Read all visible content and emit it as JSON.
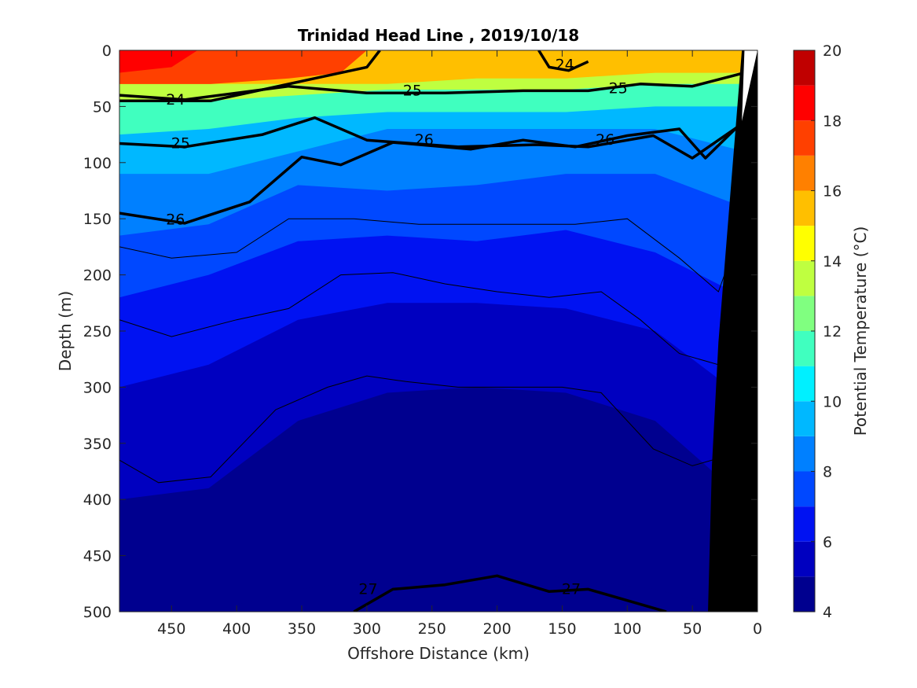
{
  "chart_data": {
    "type": "filled contour section",
    "title": "Trinidad Head Line , 2019/10/18",
    "xlabel": "Offshore Distance (km)",
    "ylabel": "Depth (m)",
    "xlim": [
      490,
      0
    ],
    "ylim": [
      0,
      500
    ],
    "x_reversed": true,
    "y_reversed": true,
    "x_ticks": [
      450,
      400,
      350,
      300,
      250,
      200,
      150,
      100,
      50,
      0
    ],
    "y_ticks": [
      0,
      50,
      100,
      150,
      200,
      250,
      300,
      350,
      400,
      450,
      500
    ],
    "colorbar": {
      "label": "Potential Temperature (°C)",
      "range": [
        4,
        20
      ],
      "ticks": [
        4,
        6,
        8,
        10,
        12,
        14,
        16,
        18,
        20
      ],
      "levels": [
        4,
        5,
        6,
        7,
        8,
        9,
        10,
        11,
        12,
        13,
        14,
        15,
        16,
        17,
        18,
        19,
        20
      ],
      "colors": [
        "#00008f",
        "#0000c0",
        "#0012f2",
        "#0048ff",
        "#0080ff",
        "#00b8ff",
        "#00f0ff",
        "#40ffbf",
        "#80ff80",
        "#bfff40",
        "#ffff00",
        "#ffbf00",
        "#ff8000",
        "#ff4000",
        "#ff0000",
        "#c00000"
      ]
    },
    "fill_bands": [
      {
        "temp_min": 16,
        "temp_max": 19,
        "top_km": [
          490,
          400,
          340,
          300
        ],
        "approx_bottom_m": [
          30,
          30,
          20,
          10
        ]
      },
      {
        "temp_min": 14,
        "temp_max": 16,
        "approx_bottom_m": [
          30,
          30,
          30,
          30,
          25,
          25,
          20,
          20
        ]
      },
      {
        "temp_min": 12,
        "temp_max": 14,
        "approx_bottom_m": [
          45,
          45,
          40,
          35,
          35,
          35,
          30,
          30
        ]
      },
      {
        "temp_min": 10,
        "temp_max": 12,
        "approx_bottom_m": [
          75,
          70,
          60,
          55,
          55,
          55,
          50,
          50
        ]
      },
      {
        "temp_min": 9,
        "temp_max": 10,
        "approx_bottom_m": [
          110,
          110,
          90,
          70,
          70,
          70,
          70,
          90
        ]
      },
      {
        "temp_min": 8,
        "temp_max": 9,
        "approx_bottom_m": [
          165,
          155,
          120,
          125,
          120,
          110,
          110,
          140
        ]
      },
      {
        "temp_min": 7,
        "temp_max": 8,
        "approx_bottom_m": [
          220,
          200,
          170,
          165,
          170,
          160,
          180,
          220
        ]
      },
      {
        "temp_min": 6,
        "temp_max": 7,
        "approx_bottom_m": [
          300,
          280,
          240,
          225,
          225,
          230,
          250,
          310
        ]
      },
      {
        "temp_min": 5,
        "temp_max": 6,
        "approx_bottom_m": [
          400,
          390,
          330,
          305,
          300,
          305,
          330,
          400
        ]
      },
      {
        "temp_min": 4,
        "temp_max": 5,
        "approx_bottom_m": [
          500,
          500,
          480,
          470,
          460,
          470,
          480,
          500
        ]
      }
    ],
    "contour_labels": [
      {
        "text": "24",
        "km": 447,
        "m": 44
      },
      {
        "text": "24",
        "km": 148,
        "m": 13
      },
      {
        "text": "25",
        "km": 265,
        "m": 36
      },
      {
        "text": "25",
        "km": 107,
        "m": 34
      },
      {
        "text": "25",
        "km": 443,
        "m": 83
      },
      {
        "text": "26",
        "km": 256,
        "m": 80
      },
      {
        "text": "26",
        "km": 117,
        "m": 80
      },
      {
        "text": "26",
        "km": 447,
        "m": 151
      },
      {
        "text": "27",
        "km": 299,
        "m": 480
      },
      {
        "text": "27",
        "km": 143,
        "m": 480
      }
    ],
    "bold_isopycnals": [
      {
        "value": "24",
        "km": [
          490,
          420,
          360,
          300,
          290
        ],
        "m": [
          45,
          45,
          30,
          15,
          0
        ]
      },
      {
        "value": "24",
        "km": [
          168,
          160,
          145,
          130
        ],
        "m": [
          0,
          15,
          18,
          10
        ]
      },
      {
        "value": "25",
        "km": [
          490,
          440,
          360,
          300,
          240,
          180,
          130,
          90,
          50,
          10
        ],
        "m": [
          40,
          44,
          32,
          38,
          38,
          36,
          36,
          30,
          32,
          20
        ]
      },
      {
        "value": "25",
        "km": [
          490,
          440,
          380,
          340,
          300,
          230,
          170,
          130,
          80,
          50,
          10
        ],
        "m": [
          83,
          86,
          75,
          60,
          80,
          86,
          84,
          86,
          76,
          96,
          64
        ]
      },
      {
        "value": "26",
        "km": [
          490,
          440,
          390,
          350,
          320,
          280,
          220,
          180,
          140,
          100,
          60,
          40,
          10
        ],
        "m": [
          145,
          154,
          135,
          95,
          102,
          82,
          88,
          80,
          86,
          76,
          70,
          96,
          62
        ]
      },
      {
        "value": "27",
        "km": [
          310,
          280,
          240,
          200,
          160,
          130,
          100,
          70
        ],
        "m": [
          500,
          480,
          476,
          468,
          482,
          480,
          490,
          500
        ]
      }
    ],
    "thin_isopycnals": [
      {
        "km": [
          490,
          450,
          400,
          360,
          310,
          260,
          220,
          180,
          140,
          100,
          60,
          30,
          10
        ],
        "m": [
          175,
          185,
          180,
          150,
          150,
          155,
          155,
          155,
          155,
          150,
          185,
          215,
          150
        ]
      },
      {
        "km": [
          490,
          450,
          400,
          360,
          320,
          280,
          240,
          200,
          160,
          120,
          90,
          60,
          30,
          15
        ],
        "m": [
          240,
          255,
          240,
          230,
          200,
          198,
          208,
          215,
          220,
          215,
          240,
          270,
          280,
          260
        ]
      },
      {
        "km": [
          490,
          460,
          420,
          370,
          330,
          300,
          270,
          230,
          190,
          150,
          120,
          80,
          50,
          20
        ],
        "m": [
          365,
          385,
          380,
          320,
          300,
          290,
          295,
          300,
          300,
          300,
          305,
          355,
          370,
          360
        ]
      }
    ],
    "bathymetry_mask": {
      "color": "#000000",
      "edge_km": [
        12,
        30,
        35,
        38
      ],
      "edge_m": [
        0,
        260,
        370,
        500
      ]
    }
  }
}
